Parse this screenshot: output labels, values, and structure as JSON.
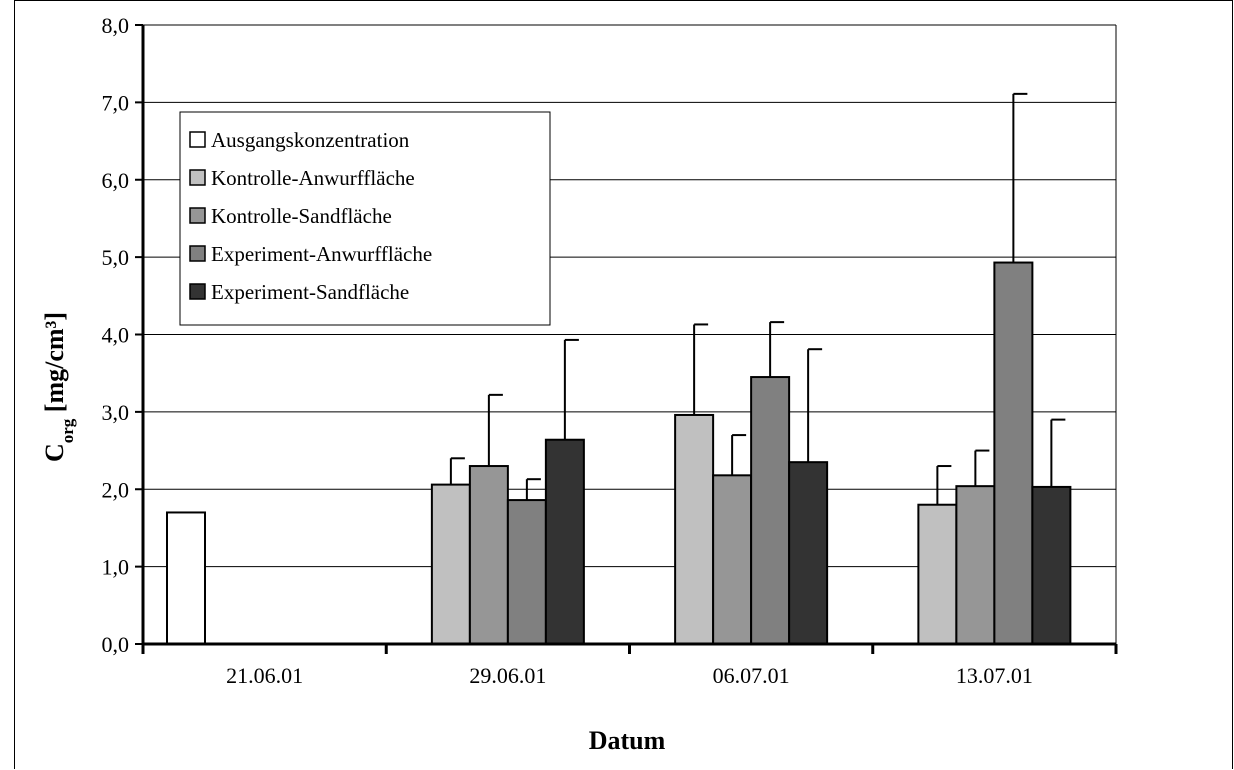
{
  "chart_data": {
    "type": "bar",
    "title": "",
    "xlabel": "Datum",
    "ylabel": {
      "main": "C",
      "sub": "org",
      "unit": " [mg/cm³]"
    },
    "ylim": [
      0,
      8
    ],
    "yticks": [
      "0,0",
      "1,0",
      "2,0",
      "3,0",
      "4,0",
      "5,0",
      "6,0",
      "7,0",
      "8,0"
    ],
    "grid": true,
    "legend_position": "top-left",
    "categories": [
      "21.06.01",
      "29.06.01",
      "06.07.01",
      "13.07.01"
    ],
    "series": [
      {
        "name": "Ausgangskonzentration",
        "color": "#ffffff",
        "values": [
          1.7,
          null,
          null,
          null
        ],
        "errors": [
          null,
          null,
          null,
          null
        ]
      },
      {
        "name": "Kontrolle-Anwurffläche",
        "color": "#c0c0c0",
        "values": [
          null,
          2.06,
          2.96,
          1.8
        ],
        "errors": [
          null,
          0.34,
          1.17,
          0.5
        ]
      },
      {
        "name": "Kontrolle-Sandfläche",
        "color": "#969696",
        "values": [
          null,
          2.3,
          2.18,
          2.04
        ],
        "errors": [
          null,
          0.92,
          0.52,
          0.46
        ]
      },
      {
        "name": "Experiment-Anwurffläche",
        "color": "#808080",
        "values": [
          null,
          1.86,
          3.45,
          4.93
        ],
        "errors": [
          null,
          0.27,
          0.71,
          2.18
        ]
      },
      {
        "name": "Experiment-Sandfläche",
        "color": "#333333",
        "values": [
          null,
          2.64,
          2.35,
          2.03
        ],
        "errors": [
          null,
          1.29,
          1.46,
          0.87
        ]
      }
    ]
  }
}
